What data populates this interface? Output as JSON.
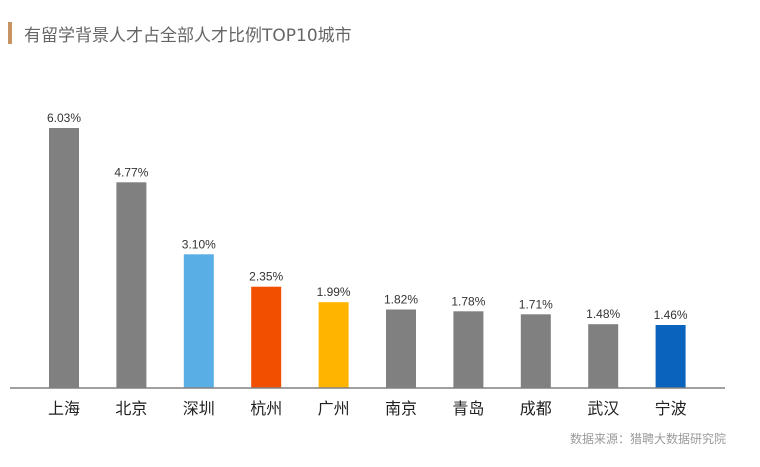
{
  "chart_data": {
    "type": "bar",
    "title": "有留学背景人才占全部人才比例TOP10城市",
    "categories": [
      "上海",
      "北京",
      "深圳",
      "杭州",
      "广州",
      "南京",
      "青岛",
      "成都",
      "武汉",
      "宁波"
    ],
    "values": [
      6.03,
      4.77,
      3.1,
      2.35,
      1.99,
      1.82,
      1.78,
      1.71,
      1.48,
      1.46
    ],
    "value_labels": [
      "6.03%",
      "4.77%",
      "3.10%",
      "2.35%",
      "1.99%",
      "1.82%",
      "1.78%",
      "1.71%",
      "1.48%",
      "1.46%"
    ],
    "colors": [
      "#808080",
      "#808080",
      "#5aaee6",
      "#f24f00",
      "#ffb400",
      "#808080",
      "#808080",
      "#808080",
      "#808080",
      "#0a64be"
    ],
    "xlabel": "",
    "ylabel": "",
    "ylim": [
      0,
      6.03
    ],
    "grid": false,
    "legend": "none",
    "source": "数据来源：猎聘大数据研究院"
  },
  "colors": {
    "title_accent": "#c59462",
    "axis": "#808080"
  }
}
